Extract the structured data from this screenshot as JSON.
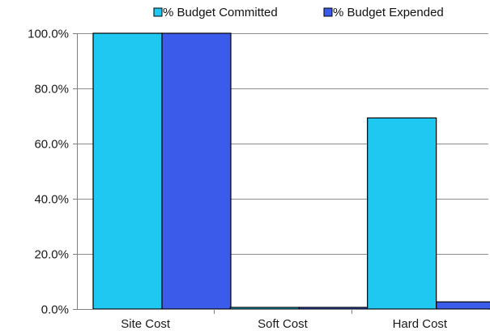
{
  "chart_data": {
    "type": "bar",
    "title": "",
    "xlabel": "",
    "ylabel": "",
    "categories": [
      "Site Cost",
      "Soft Cost",
      "Hard Cost"
    ],
    "series": [
      {
        "name": "% Budget Committed",
        "values": [
          100.0,
          0.6,
          69.3
        ],
        "color": "#1EC8F0"
      },
      {
        "name": "% Budget Expended",
        "values": [
          100.0,
          0.6,
          2.6
        ],
        "color": "#3B5BEA"
      }
    ],
    "ylim": [
      0,
      100
    ],
    "yticks": [
      0,
      20,
      40,
      60,
      80,
      100
    ],
    "ytick_labels": [
      "0.0%",
      "20.0%",
      "40.0%",
      "60.0%",
      "80.0%",
      "100.0%"
    ],
    "grid": true,
    "legend_position": "top-right",
    "bar_outline_color": "#000000"
  }
}
